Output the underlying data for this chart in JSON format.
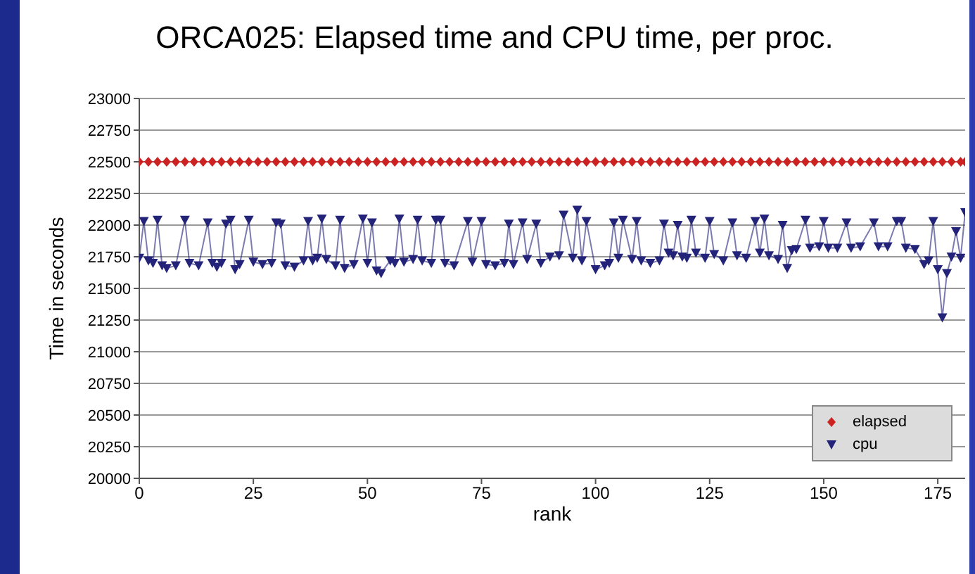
{
  "chart_data": {
    "type": "line",
    "title": "ORCA025: Elapsed time and CPU time, per proc.",
    "xlabel": "rank",
    "ylabel": "Time in seconds",
    "xlim": [
      0,
      181
    ],
    "xticks": [
      0,
      25,
      50,
      75,
      100,
      125,
      150,
      175
    ],
    "ylim": [
      20000,
      23000
    ],
    "yticks": [
      20000,
      20250,
      20500,
      20750,
      21000,
      21250,
      21500,
      21750,
      22000,
      22250,
      22500,
      22750,
      23000
    ],
    "grid": "y",
    "legend": "bottom right",
    "line_style": "solid",
    "series": [
      {
        "name": "elapsed",
        "color": "#cc2222",
        "marker": "diamond",
        "x": [
          0,
          2,
          4,
          6,
          8,
          10,
          12,
          14,
          16,
          18,
          20,
          22,
          24,
          26,
          28,
          30,
          32,
          34,
          36,
          38,
          40,
          42,
          44,
          46,
          48,
          50,
          52,
          54,
          56,
          58,
          60,
          62,
          64,
          66,
          68,
          70,
          72,
          74,
          76,
          78,
          80,
          82,
          84,
          86,
          88,
          90,
          92,
          94,
          96,
          98,
          100,
          102,
          104,
          106,
          108,
          110,
          112,
          114,
          116,
          118,
          120,
          122,
          124,
          126,
          128,
          130,
          132,
          134,
          136,
          138,
          140,
          142,
          144,
          146,
          148,
          150,
          152,
          154,
          156,
          158,
          160,
          162,
          164,
          166,
          168,
          170,
          172,
          174,
          176,
          178,
          180,
          181
        ],
        "values": [
          22500,
          22500,
          22500,
          22500,
          22500,
          22500,
          22500,
          22500,
          22500,
          22500,
          22500,
          22500,
          22500,
          22500,
          22500,
          22500,
          22500,
          22500,
          22500,
          22500,
          22500,
          22500,
          22500,
          22500,
          22500,
          22500,
          22500,
          22500,
          22500,
          22500,
          22500,
          22500,
          22500,
          22500,
          22500,
          22500,
          22500,
          22500,
          22500,
          22500,
          22500,
          22500,
          22500,
          22500,
          22500,
          22500,
          22500,
          22500,
          22500,
          22500,
          22500,
          22500,
          22500,
          22500,
          22500,
          22500,
          22500,
          22500,
          22500,
          22500,
          22500,
          22500,
          22500,
          22500,
          22500,
          22500,
          22500,
          22500,
          22500,
          22500,
          22500,
          22500,
          22500,
          22500,
          22500,
          22500,
          22500,
          22500,
          22500,
          22500,
          22500,
          22500,
          22500,
          22500,
          22500,
          22500,
          22500,
          22500,
          22500,
          22500,
          22500,
          22500
        ]
      },
      {
        "name": "cpu",
        "color": "#23237a",
        "marker": "triangle",
        "x": [
          0,
          1,
          2,
          3,
          4,
          5,
          6,
          8,
          10,
          11,
          13,
          15,
          16,
          17,
          18,
          19,
          20,
          21,
          22,
          24,
          25,
          27,
          29,
          30,
          31,
          32,
          34,
          36,
          37,
          38,
          39,
          40,
          41,
          43,
          44,
          45,
          47,
          49,
          50,
          51,
          52,
          53,
          55,
          56,
          57,
          58,
          60,
          61,
          62,
          64,
          65,
          66,
          67,
          69,
          72,
          73,
          75,
          76,
          78,
          80,
          81,
          82,
          84,
          85,
          87,
          88,
          90,
          92,
          93,
          95,
          96,
          97,
          98,
          100,
          102,
          103,
          104,
          105,
          106,
          108,
          109,
          110,
          112,
          114,
          115,
          116,
          117,
          118,
          119,
          120,
          121,
          122,
          124,
          125,
          126,
          128,
          130,
          131,
          133,
          135,
          136,
          137,
          138,
          140,
          141,
          142,
          143,
          144,
          146,
          147,
          149,
          150,
          151,
          153,
          155,
          156,
          158,
          161,
          162,
          164,
          166,
          167,
          168,
          170,
          172,
          173,
          174,
          175,
          176,
          177,
          178,
          179,
          180,
          181
        ],
        "values": [
          21740,
          22030,
          21720,
          21700,
          22040,
          21680,
          21660,
          21680,
          22040,
          21700,
          21680,
          22020,
          21700,
          21670,
          21700,
          22010,
          22040,
          21650,
          21690,
          22040,
          21710,
          21690,
          21700,
          22020,
          22010,
          21680,
          21670,
          21720,
          22030,
          21720,
          21740,
          22050,
          21730,
          21680,
          22040,
          21660,
          21690,
          22050,
          21700,
          22020,
          21640,
          21620,
          21720,
          21700,
          22050,
          21710,
          21730,
          22040,
          21720,
          21700,
          22040,
          22040,
          21700,
          21680,
          22030,
          21710,
          22030,
          21690,
          21680,
          21700,
          22010,
          21690,
          22020,
          21730,
          22010,
          21700,
          21750,
          21760,
          22080,
          21740,
          22120,
          21720,
          22030,
          21650,
          21680,
          21700,
          22020,
          21740,
          22040,
          21730,
          22030,
          21720,
          21700,
          21720,
          22010,
          21780,
          21760,
          22000,
          21750,
          21740,
          22040,
          21780,
          21740,
          22030,
          21770,
          21720,
          22020,
          21760,
          21740,
          22030,
          21780,
          22050,
          21760,
          21730,
          22000,
          21660,
          21800,
          21810,
          22040,
          21820,
          21830,
          22030,
          21820,
          21820,
          22020,
          21820,
          21830,
          22020,
          21830,
          21830,
          22030,
          22030,
          21820,
          21810,
          21690,
          21720,
          22030,
          21650,
          21270,
          21620,
          21750,
          21950,
          21740,
          22100
        ]
      }
    ]
  }
}
